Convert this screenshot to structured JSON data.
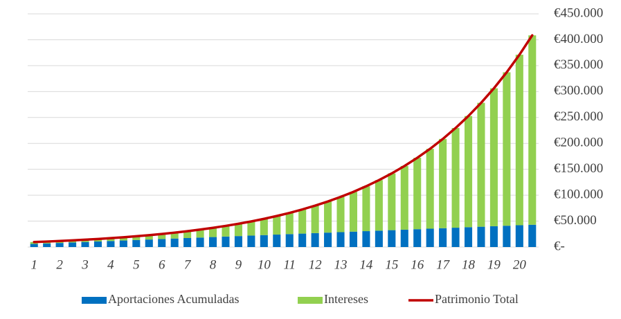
{
  "chart_data": {
    "type": "bar",
    "stacked": true,
    "categories": [
      "1",
      null,
      "2",
      null,
      "3",
      null,
      "4",
      null,
      "5",
      null,
      "6",
      null,
      "7",
      null,
      "8",
      null,
      "9",
      null,
      "10",
      null,
      "11",
      null,
      "12",
      null,
      "13",
      null,
      "14",
      null,
      "15",
      null,
      "16",
      null,
      "17",
      null,
      "18",
      null,
      "19",
      null,
      "20",
      null
    ],
    "series": [
      {
        "name": "Aportaciones Acumuladas",
        "type": "bar",
        "color": "#0070c0",
        "values": [
          5950,
          6900,
          7850,
          8800,
          9750,
          10700,
          11650,
          12600,
          13550,
          14500,
          15450,
          16400,
          17350,
          18300,
          19250,
          20200,
          21150,
          22100,
          23050,
          24000,
          24950,
          25900,
          26850,
          27800,
          28750,
          29700,
          30650,
          31600,
          32550,
          33500,
          34450,
          35400,
          36350,
          37300,
          38250,
          39200,
          40150,
          41100,
          42050,
          43000
        ]
      },
      {
        "name": "Intereses",
        "type": "bar",
        "color": "#92d050",
        "values": [
          3750,
          3700,
          3850,
          4100,
          4450,
          4900,
          5550,
          6300,
          7250,
          8400,
          9750,
          11400,
          13250,
          15400,
          17850,
          20600,
          23750,
          27300,
          31350,
          35900,
          40950,
          46700,
          53050,
          60100,
          68050,
          76800,
          86650,
          97500,
          109550,
          122900,
          137750,
          154100,
          172250,
          192400,
          214550,
          239100,
          266150,
          296100,
          329050,
          365500
        ]
      },
      {
        "name": "Patrimonio Total",
        "type": "line",
        "color": "#c00000",
        "values": [
          9700,
          10600,
          11700,
          12900,
          14200,
          15600,
          17200,
          18900,
          20800,
          22900,
          25200,
          27800,
          30600,
          33700,
          37100,
          40800,
          44900,
          49400,
          54400,
          59900,
          65900,
          72600,
          79900,
          87900,
          96800,
          106500,
          117300,
          129100,
          142100,
          156400,
          172200,
          189500,
          208600,
          229700,
          252800,
          278300,
          306300,
          337200,
          371100,
          408500
        ]
      }
    ],
    "ylim": [
      0,
      450000
    ],
    "yticks": [
      {
        "value": 0,
        "label": "€-"
      },
      {
        "value": 50000,
        "label": "€50.000"
      },
      {
        "value": 100000,
        "label": "€100.000"
      },
      {
        "value": 150000,
        "label": "€150.000"
      },
      {
        "value": 200000,
        "label": "€200.000"
      },
      {
        "value": 250000,
        "label": "€250.000"
      },
      {
        "value": 300000,
        "label": "€300.000"
      },
      {
        "value": 350000,
        "label": "€350.000"
      },
      {
        "value": 400000,
        "label": "€400.000"
      },
      {
        "value": 450000,
        "label": "€450.000"
      }
    ],
    "grid": true,
    "legend": "bottom"
  }
}
